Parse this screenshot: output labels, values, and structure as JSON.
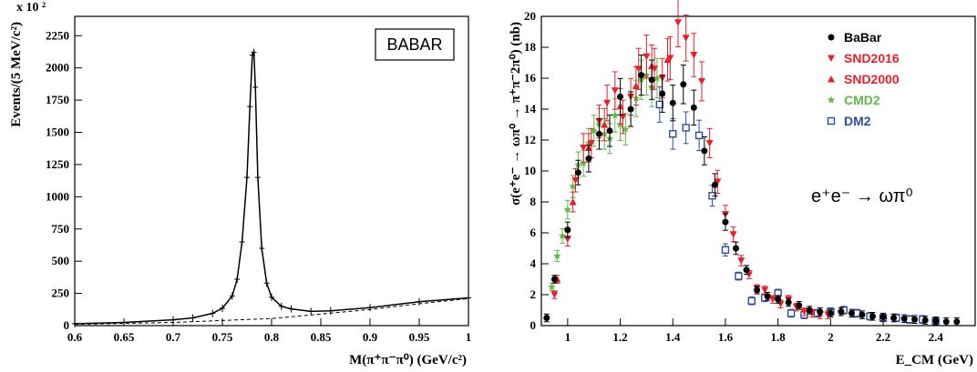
{
  "chart_data": [
    {
      "type": "line",
      "exponent_label": "x 10 ²",
      "badge": "BABAR",
      "xlabel": "M(π⁺π⁻π⁰) (GeV/c²)",
      "ylabel": "Events/(5 MeV/c²)",
      "xlim": [
        0.6,
        1.0
      ],
      "ylim": [
        0,
        2400
      ],
      "x_ticks": [
        "0.6",
        "0.65",
        "0.7",
        "0.75",
        "0.8",
        "0.85",
        "0.9",
        "0.95",
        "1"
      ],
      "y_ticks": [
        "0",
        "250",
        "500",
        "750",
        "1000",
        "1250",
        "1500",
        "1750",
        "2000",
        "2250"
      ],
      "series": [
        {
          "style": "solid",
          "x": [
            0.6,
            0.65,
            0.7,
            0.72,
            0.74,
            0.75,
            0.76,
            0.765,
            0.77,
            0.775,
            0.778,
            0.7805,
            0.782,
            0.7835,
            0.786,
            0.79,
            0.795,
            0.8,
            0.81,
            0.82,
            0.84,
            0.86,
            0.9,
            0.95,
            1.0
          ],
          "values": [
            15,
            25,
            45,
            60,
            95,
            135,
            230,
            360,
            650,
            1150,
            1700,
            2100,
            2120,
            1850,
            1150,
            600,
            330,
            220,
            150,
            130,
            110,
            115,
            140,
            185,
            215
          ]
        },
        {
          "style": "dashed",
          "x": [
            0.6,
            0.7,
            0.8,
            0.85,
            0.9,
            0.95,
            1.0
          ],
          "values": [
            10,
            25,
            55,
            90,
            125,
            170,
            210
          ]
        }
      ]
    },
    {
      "type": "scatter",
      "xlabel": "E_CM (GeV)",
      "ylabel": "σ(e⁺e⁻ → ωπ⁰ → π⁺π⁻2π⁰) (nb)",
      "annotation": "e⁺e⁻ → ωπ⁰",
      "xlim": [
        0.9,
        2.55
      ],
      "ylim": [
        0,
        20
      ],
      "x_ticks": [
        "1",
        "1.2",
        "1.4",
        "1.6",
        "1.8",
        "2",
        "2.2",
        "2.4"
      ],
      "y_ticks": [
        "0",
        "2",
        "4",
        "6",
        "8",
        "10",
        "12",
        "14",
        "16",
        "18",
        "20"
      ],
      "legend_position": "top-right",
      "series": [
        {
          "name": "BaBar",
          "marker": "circle",
          "color": "#000000",
          "x": [
            0.92,
            0.95,
            1.0,
            1.04,
            1.08,
            1.12,
            1.16,
            1.2,
            1.24,
            1.28,
            1.32,
            1.36,
            1.4,
            1.44,
            1.48,
            1.52,
            1.56,
            1.6,
            1.64,
            1.68,
            1.72,
            1.76,
            1.8,
            1.84,
            1.88,
            1.92,
            1.96,
            2.0,
            2.04,
            2.08,
            2.12,
            2.16,
            2.2,
            2.24,
            2.28,
            2.32,
            2.36,
            2.4,
            2.44,
            2.48
          ],
          "values": [
            0.5,
            3.0,
            6.2,
            9.9,
            10.8,
            12.4,
            12.6,
            14.8,
            14.0,
            16.2,
            15.9,
            15.0,
            14.4,
            15.6,
            14.1,
            11.3,
            9.1,
            6.7,
            5.0,
            3.6,
            2.3,
            1.9,
            1.7,
            1.5,
            1.3,
            1.0,
            0.9,
            0.8,
            0.9,
            0.8,
            0.7,
            0.6,
            0.55,
            0.5,
            0.45,
            0.4,
            0.35,
            0.3,
            0.25,
            0.25
          ]
        },
        {
          "name": "SND2016",
          "marker": "triangle-down",
          "color": "#e8202a",
          "x": [
            0.95,
            1.0,
            1.03,
            1.06,
            1.09,
            1.12,
            1.15,
            1.18,
            1.21,
            1.24,
            1.27,
            1.3,
            1.33,
            1.36,
            1.39,
            1.42,
            1.45,
            1.48,
            1.51,
            1.54,
            1.57,
            1.6,
            1.63,
            1.66,
            1.69,
            1.72,
            1.75,
            1.78,
            1.81,
            1.84,
            1.87,
            1.9,
            1.93,
            1.96,
            1.99
          ],
          "values": [
            2.0,
            5.6,
            9.4,
            11.5,
            11.8,
            13.2,
            14.4,
            15.2,
            13.5,
            14.8,
            16.6,
            17.4,
            16.6,
            16.0,
            17.3,
            19.6,
            18.6,
            17.5,
            15.8,
            11.8,
            9.3,
            7.2,
            5.9,
            4.2,
            3.3,
            2.4,
            2.3,
            1.7,
            1.4,
            1.7,
            1.2,
            0.9,
            0.8,
            0.7,
            0.7
          ]
        },
        {
          "name": "SND2000",
          "marker": "triangle-up",
          "color": "#e8202a",
          "x": [
            0.96,
            1.02,
            1.08,
            1.14,
            1.2,
            1.26,
            1.32,
            1.38
          ],
          "values": [
            3.0,
            8.0,
            11.5,
            13.0,
            14.2,
            15.5,
            16.8,
            17.2
          ]
        },
        {
          "name": "CMD2",
          "marker": "star",
          "color": "#5dbb46",
          "x": [
            0.94,
            0.96,
            0.98,
            1.0,
            1.02,
            1.04,
            1.06,
            1.08,
            1.1,
            1.12,
            1.14,
            1.16,
            1.18,
            1.2,
            1.22,
            1.24,
            1.26,
            1.28,
            1.3,
            1.32,
            1.34
          ],
          "values": [
            2.5,
            4.5,
            5.8,
            7.5,
            9.0,
            10.4,
            10.5,
            11.8,
            12.6,
            13.0,
            12.4,
            12.1,
            13.6,
            13.0,
            12.7,
            14.0,
            14.7,
            15.9,
            16.2,
            15.4,
            16.0
          ]
        },
        {
          "name": "DM2",
          "marker": "square-open",
          "color": "#2e4da0",
          "x": [
            1.35,
            1.4,
            1.45,
            1.5,
            1.55,
            1.6,
            1.65,
            1.7,
            1.75,
            1.8,
            1.85,
            1.9,
            1.95,
            2.0,
            2.05,
            2.1,
            2.15,
            2.2,
            2.25,
            2.3,
            2.35,
            2.4
          ],
          "values": [
            14.3,
            12.4,
            12.8,
            12.3,
            8.4,
            4.9,
            3.2,
            1.6,
            1.8,
            2.1,
            0.8,
            0.7,
            0.8,
            0.9,
            1.0,
            0.8,
            0.6,
            0.5,
            0.5,
            0.4,
            0.4,
            0.3
          ]
        }
      ]
    }
  ]
}
